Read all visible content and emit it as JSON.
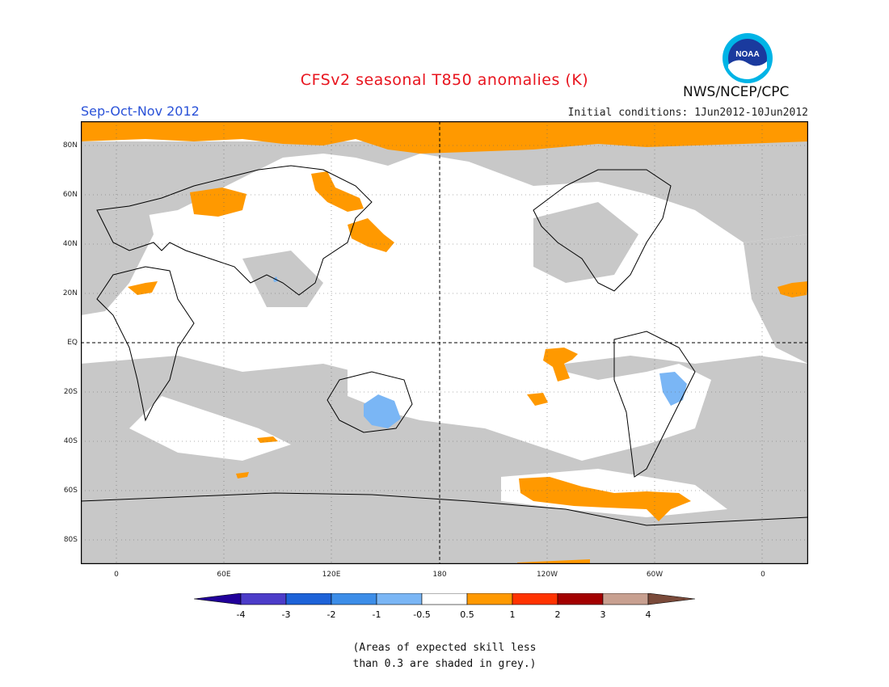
{
  "header": {
    "title": "CFSv2 seasonal T850 anomalies (K)",
    "season": "Sep-Oct-Nov 2012",
    "initial_conditions": "Initial conditions: 1Jun2012-10Jun2012",
    "agency": "NWS/NCEP/CPC",
    "logo_text": "NOAA"
  },
  "map": {
    "lat_labels": [
      "80N",
      "60N",
      "40N",
      "20N",
      "EQ",
      "20S",
      "40S",
      "60S",
      "80S"
    ],
    "lon_labels": [
      "0",
      "60E",
      "120E",
      "180",
      "120W",
      "60W",
      "0"
    ],
    "skill_shade_color": "#c8c8c8",
    "coast_color": "#000000"
  },
  "legend": {
    "tick_labels": [
      "-4",
      "-3",
      "-2",
      "-1",
      "-0.5",
      "0.5",
      "1",
      "2",
      "3",
      "4"
    ],
    "colors": [
      "#21009a",
      "#4c3cc9",
      "#1d62d8",
      "#3c8de8",
      "#7ab6f5",
      "#ffffff",
      "#ff9900",
      "#ff3300",
      "#a30000",
      "#c8a090",
      "#7a4a3a"
    ]
  },
  "note": {
    "line1": "(Areas of expected skill less",
    "line2": "than 0.3 are shaded in grey.)"
  }
}
